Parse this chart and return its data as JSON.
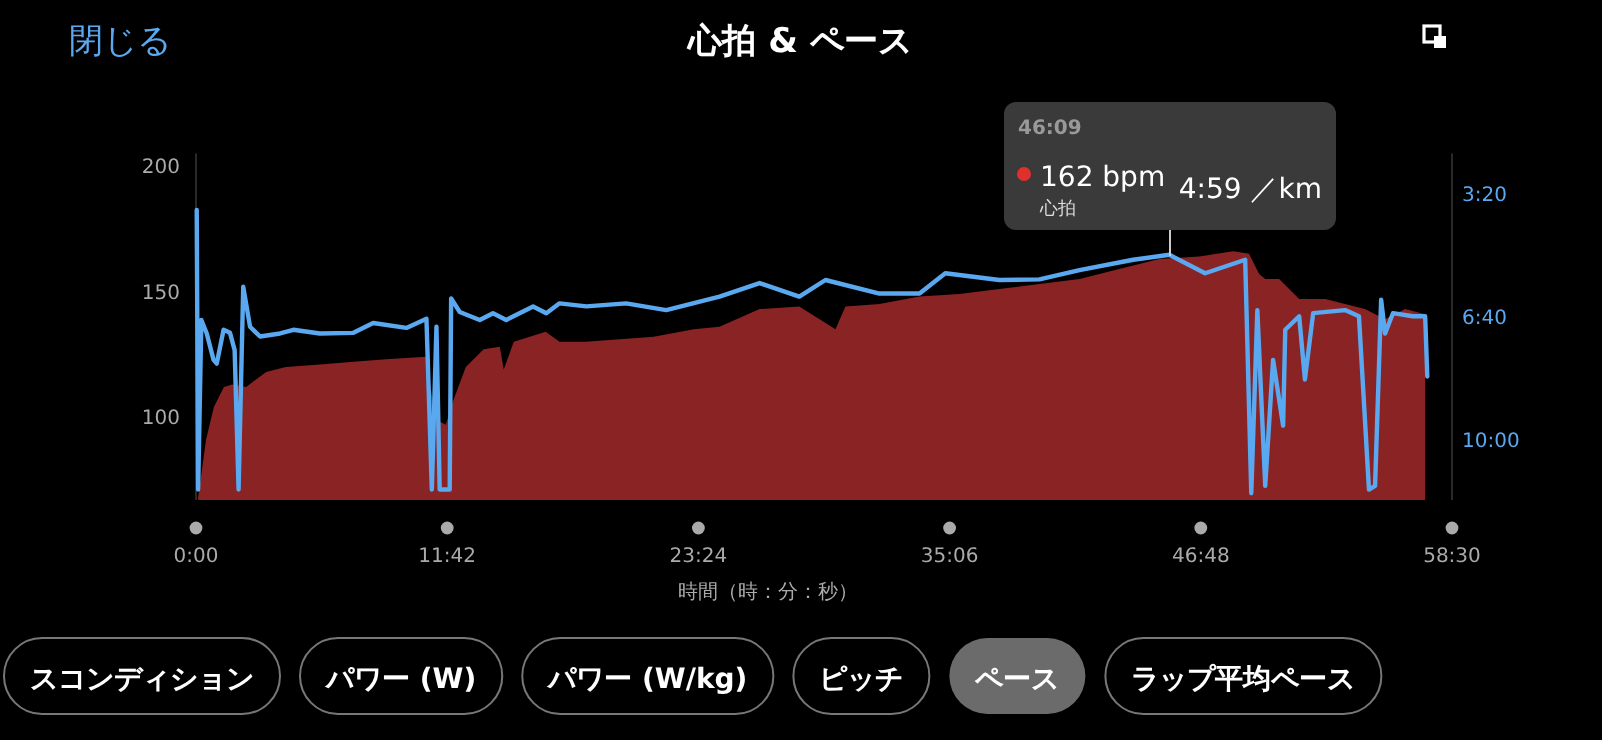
{
  "chart_data": {
    "type": "area",
    "title": "心拍 & ペース",
    "xlabel": "時間（時：分：秒）",
    "xlim": [
      0,
      3510
    ],
    "xticks": [
      {
        "value": 0,
        "label": "0:00"
      },
      {
        "value": 702,
        "label": "11:42"
      },
      {
        "value": 1404,
        "label": "23:24"
      },
      {
        "value": 2106,
        "label": "35:06"
      },
      {
        "value": 2808,
        "label": "46:48"
      },
      {
        "value": 3510,
        "label": "58:30"
      }
    ],
    "ylim": [
      67,
      205
    ],
    "yticks": [
      100,
      150,
      200
    ],
    "y2lim": [
      698,
      134
    ],
    "y2ticks": [
      {
        "value": 200,
        "label": "3:20"
      },
      {
        "value": 400,
        "label": "6:40"
      },
      {
        "value": 600,
        "label": "10:00"
      }
    ],
    "series": [
      {
        "type": "area",
        "name": "心拍",
        "color": "#8a2323",
        "x": [
          6,
          28,
          50,
          78,
          101,
          140,
          196,
          251,
          346,
          441,
          531,
          642,
          670,
          698,
          720,
          754,
          804,
          849,
          860,
          888,
          977,
          1016,
          1089,
          1279,
          1391,
          1463,
          1575,
          1686,
          1787,
          1815,
          1910,
          2022,
          2133,
          2245,
          2357,
          2469,
          2580,
          2692,
          2804,
          2899,
          2943,
          2971,
          2988,
          3027,
          3083,
          3156,
          3211,
          3267,
          3323,
          3379,
          3435
        ],
        "values": [
          68,
          91,
          104,
          112,
          113,
          112,
          118,
          120,
          121,
          122,
          123,
          124,
          99,
          97,
          107,
          120,
          127,
          128,
          119,
          130,
          134,
          130,
          130,
          132,
          135,
          136,
          143,
          144,
          135,
          144,
          145,
          148,
          149,
          151,
          153,
          155,
          159,
          163,
          164,
          166,
          165,
          157,
          155,
          155,
          147,
          147,
          145,
          143,
          139,
          143,
          141
        ]
      },
      {
        "type": "line",
        "axis": "y2",
        "color": "#5aa9f0",
        "x": [
          2,
          6,
          15,
          30,
          49,
          58,
          77,
          95,
          108,
          119,
          132,
          151,
          179,
          235,
          272,
          346,
          440,
          495,
          588,
          644,
          659,
          672,
          681,
          709,
          713,
          737,
          793,
          830,
          867,
          942,
          979,
          1016,
          1091,
          1202,
          1314,
          1463,
          1575,
          1686,
          1759,
          1910,
          2022,
          2094,
          2245,
          2357,
          2469,
          2619,
          2720,
          2820,
          2932,
          2949,
          2966,
          2988,
          3010,
          3038,
          3044,
          3083,
          3099,
          3122,
          3211,
          3250,
          3278,
          3295,
          3312,
          3323,
          3345,
          3401,
          3435,
          3441
        ],
        "values": [
          226,
          681,
          405,
          427,
          470,
          476,
          421,
          426,
          454,
          681,
          351,
          416,
          432,
          427,
          421,
          427,
          426,
          410,
          418,
          403,
          681,
          416,
          681,
          681,
          370,
          392,
          405,
          394,
          405,
          383,
          394,
          378,
          383,
          378,
          389,
          367,
          345,
          367,
          340,
          362,
          362,
          329,
          340,
          339,
          324,
          307,
          299,
          329,
          307,
          687,
          389,
          675,
          470,
          577,
          421,
          399,
          502,
          394,
          389,
          399,
          681,
          675,
          372,
          427,
          394,
          399,
          399,
          497
        ]
      }
    ],
    "annotations": [
      "閉じる",
      "46:09",
      "162 bpm",
      "4:59 ／km",
      "スコンディション",
      "パワー (W)",
      "パワー (W/kg)",
      "ピッチ",
      "ペース",
      "ラップ平均ペース"
    ]
  }
}
